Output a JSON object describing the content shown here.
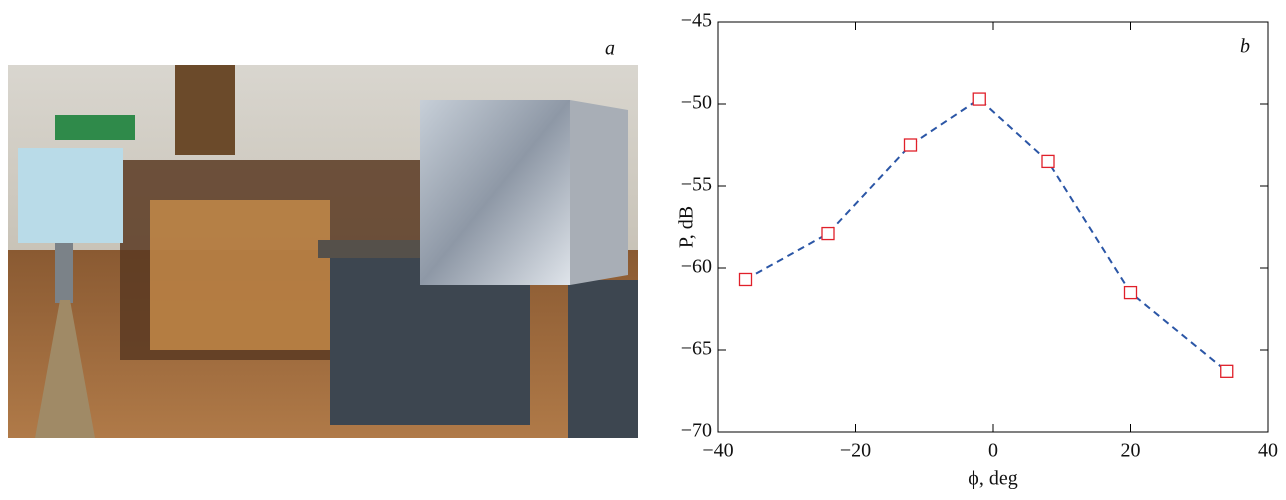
{
  "photo": {
    "label": "a"
  },
  "chart_data": {
    "type": "line",
    "panel_label": "b",
    "xlabel": "ϕ, deg",
    "ylabel": "P, dB",
    "x": [
      -36,
      -24,
      -12,
      -2,
      8,
      20,
      34
    ],
    "series": [
      {
        "color": "#2b56a6",
        "marker_color": "#e0202a",
        "values": [
          -60.7,
          -57.9,
          -52.5,
          -49.7,
          -53.5,
          -61.5,
          -66.3
        ]
      }
    ],
    "xlim": [
      -40,
      40
    ],
    "xticks": [
      {
        "value": -40,
        "label": "−40"
      },
      {
        "value": -20,
        "label": "−20"
      },
      0,
      20,
      40
    ],
    "ylim": [
      -70,
      -45
    ],
    "yticks": [
      {
        "value": -70,
        "label": "−70"
      },
      {
        "value": -65,
        "label": "−65"
      },
      {
        "value": -60,
        "label": "−60"
      },
      {
        "value": -55,
        "label": "−55"
      },
      {
        "value": -50,
        "label": "−50"
      },
      {
        "value": -45,
        "label": "−45"
      }
    ]
  }
}
